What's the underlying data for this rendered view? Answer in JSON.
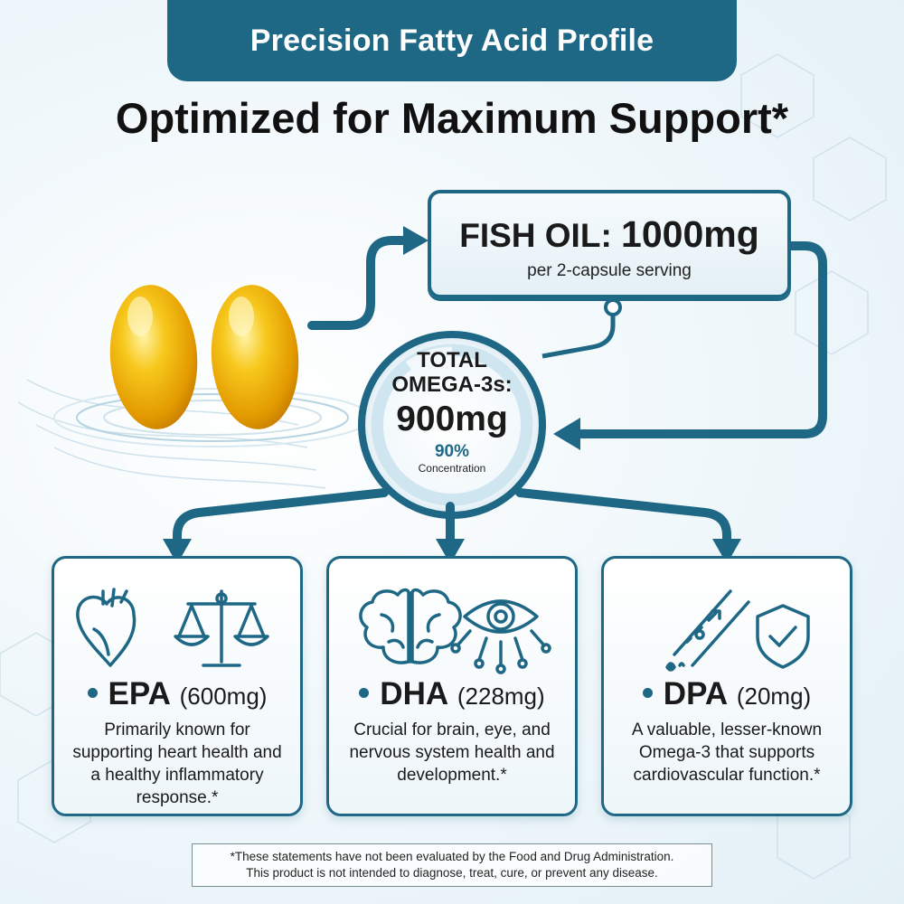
{
  "banner": {
    "title": "Precision Fatty Acid Profile"
  },
  "headline": {
    "text": "Optimized for Maximum Support*"
  },
  "fish_oil": {
    "label": "FISH OIL:",
    "value": "1000mg",
    "sub": "per 2-capsule serving"
  },
  "omega": {
    "label_line1": "TOTAL",
    "label_line2": "OMEGA-3s:",
    "value": "900mg",
    "percent": "90%",
    "percent_value": 90,
    "concentration_label": "Concentration"
  },
  "cards": [
    {
      "name": "EPA",
      "amount": "(600mg)",
      "description": "Primarily known for supporting heart health and a healthy inflammatory response.*",
      "icons": [
        "heart-icon",
        "balance-scale-icon"
      ]
    },
    {
      "name": "DHA",
      "amount": "(228mg)",
      "description": "Crucial for brain, eye, and nervous system health and development.*",
      "icons": [
        "brain-icon",
        "eye-circuit-icon"
      ]
    },
    {
      "name": "DPA",
      "amount": "(20mg)",
      "description": "A valuable, lesser-known Omega-3 that supports cardiovascular function.*",
      "icons": [
        "blood-vessel-icon",
        "shield-check-icon"
      ]
    }
  ],
  "disclaimer": {
    "line1": "*These statements have not been evaluated by the Food and Drug Administration.",
    "line2": "This product is not intended to diagnose, treat, cure, or prevent any disease."
  },
  "colors": {
    "primary": "#1e6886",
    "accent_light": "#cfe6f1",
    "capsule": "#f2b705",
    "text": "#1a1a1a"
  }
}
